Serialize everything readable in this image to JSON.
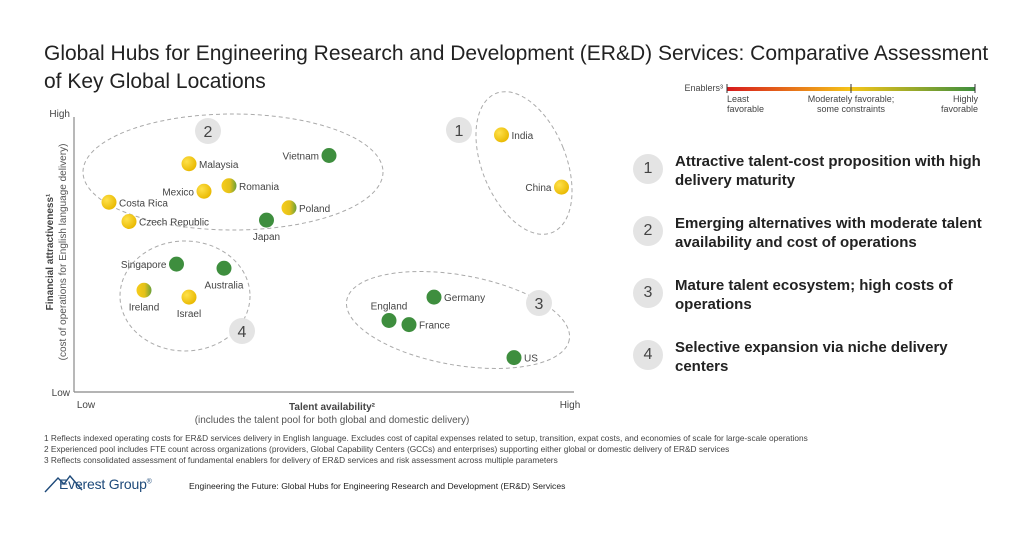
{
  "title": "Global Hubs for Engineering Research and Development (ER&D) Services: Comparative Assessment of Key Global Locations",
  "chart_data": {
    "type": "scatter",
    "xlabel": "Talent availability²",
    "xlabel_sub": "(includes the talent pool for both global and domestic delivery)",
    "ylabel": "Financial attractiveness¹",
    "ylabel_sub": "(cost of operations for English language delivery)",
    "x_ticks": {
      "low": "Low",
      "high": "High"
    },
    "y_ticks": {
      "low": "Low",
      "high": "High"
    },
    "xlim": [
      0,
      100
    ],
    "ylim": [
      0,
      100
    ],
    "color_scale": {
      "label": "Enablers³",
      "least": "Least favorable",
      "moderate": "Moderately favorable; some constraints",
      "high": "Highly favorable",
      "colors": [
        "#d7191c",
        "#f5c518",
        "#3e8e3e"
      ]
    },
    "points": [
      {
        "name": "India",
        "x": 85.5,
        "y": 93.5,
        "enabler": 0.3,
        "label_side": "right"
      },
      {
        "name": "China",
        "x": 97.5,
        "y": 74.5,
        "enabler": 0.4,
        "label_side": "left"
      },
      {
        "name": "Vietnam",
        "x": 51,
        "y": 86,
        "enabler": 0.95,
        "label_side": "left"
      },
      {
        "name": "Malaysia",
        "x": 23,
        "y": 83,
        "enabler": 0.4,
        "label_side": "right"
      },
      {
        "name": "Romania",
        "x": 31,
        "y": 75,
        "enabler": 0.5,
        "label_side": "right"
      },
      {
        "name": "Mexico",
        "x": 26,
        "y": 73,
        "enabler": 0.3,
        "label_side": "left"
      },
      {
        "name": "Costa Rica",
        "x": 7,
        "y": 69,
        "enabler": 0.3,
        "label_side": "right"
      },
      {
        "name": "Poland",
        "x": 43,
        "y": 67,
        "enabler": 0.45,
        "label_side": "right"
      },
      {
        "name": "Czech Republic",
        "x": 11,
        "y": 62,
        "enabler": 0.4,
        "label_side": "right"
      },
      {
        "name": "Japan",
        "x": 38.5,
        "y": 62.5,
        "enabler": 0.95,
        "label_side": "below"
      },
      {
        "name": "Singapore",
        "x": 20.5,
        "y": 46.5,
        "enabler": 0.95,
        "label_side": "left"
      },
      {
        "name": "Australia",
        "x": 30,
        "y": 45,
        "enabler": 0.95,
        "label_side": "below"
      },
      {
        "name": "Ireland",
        "x": 14,
        "y": 37,
        "enabler": 0.5,
        "label_side": "below"
      },
      {
        "name": "Israel",
        "x": 23,
        "y": 34.5,
        "enabler": 0.4,
        "label_side": "below"
      },
      {
        "name": "Germany",
        "x": 72,
        "y": 34.5,
        "enabler": 0.95,
        "label_side": "right"
      },
      {
        "name": "England",
        "x": 63,
        "y": 26,
        "enabler": 0.95,
        "label_side": "above"
      },
      {
        "name": "France",
        "x": 67,
        "y": 24.5,
        "enabler": 0.95,
        "label_side": "right"
      },
      {
        "name": "US",
        "x": 88,
        "y": 12.5,
        "enabler": 0.95,
        "label_side": "right"
      }
    ],
    "clusters": [
      {
        "id": "1",
        "label": "1"
      },
      {
        "id": "2",
        "label": "2"
      },
      {
        "id": "3",
        "label": "3"
      },
      {
        "id": "4",
        "label": "4"
      }
    ]
  },
  "legend": [
    {
      "num": "1",
      "text": "Attractive talent-cost proposition with high delivery maturity"
    },
    {
      "num": "2",
      "text": "Emerging alternatives with moderate talent availability and cost of operations"
    },
    {
      "num": "3",
      "text": "Mature talent ecosystem; high costs of operations"
    },
    {
      "num": "4",
      "text": "Selective expansion via niche delivery centers"
    }
  ],
  "footnotes": [
    "1 Reflects indexed operating costs for ER&D services delivery in English language. Excludes cost of capital expenses related to setup, transition, expat costs, and economies of scale for large-scale operations",
    "2 Experienced pool includes FTE count across organizations (providers, Global Capability Centers (GCCs) and enterprises) supporting either global or domestic delivery of ER&D services",
    "3 Reflects consolidated assessment of fundamental enablers for delivery of ER&D services and risk assessment across multiple parameters"
  ],
  "brand": {
    "name": "Everest Group",
    "reg": "®"
  },
  "report_title": "Engineering the Future: Global Hubs for Engineering Research and Development (ER&D) Services"
}
